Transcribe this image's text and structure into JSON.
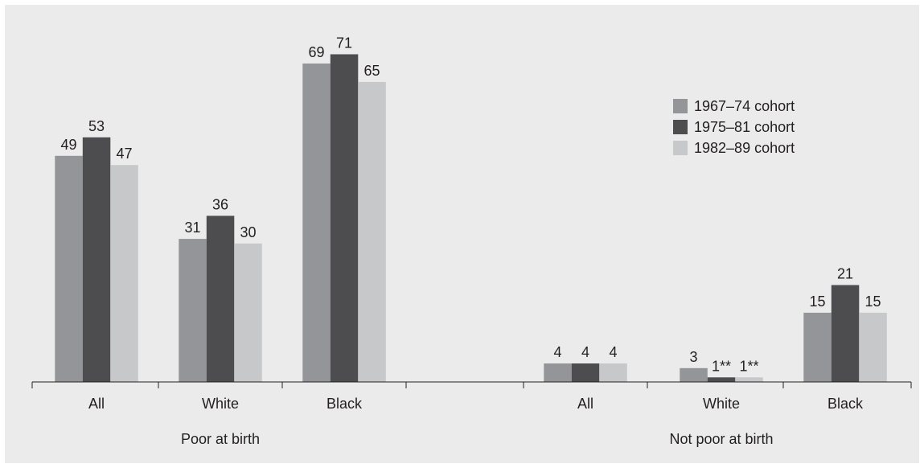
{
  "chart_data": {
    "type": "bar",
    "groups": [
      {
        "label": "Poor at birth",
        "categories": [
          "All",
          "White",
          "Black"
        ]
      },
      {
        "label": "Not poor at birth",
        "categories": [
          "All",
          "White",
          "Black"
        ]
      }
    ],
    "series": [
      {
        "name": "1967–74 cohort",
        "color": "#939598",
        "values": [
          49,
          31,
          69,
          4,
          3,
          15
        ],
        "labels": [
          "49",
          "31",
          "69",
          "4",
          "3",
          "15"
        ]
      },
      {
        "name": "1975–81 cohort",
        "color": "#4d4d4f",
        "values": [
          53,
          36,
          71,
          4,
          1,
          21
        ],
        "labels": [
          "53",
          "36",
          "71",
          "4",
          "1**",
          "21"
        ]
      },
      {
        "name": "1982–89 cohort",
        "color": "#c7c8ca",
        "values": [
          47,
          30,
          65,
          4,
          1,
          15
        ],
        "labels": [
          "47",
          "30",
          "65",
          "4",
          "1**",
          "15"
        ]
      }
    ],
    "ylim": [
      0,
      73
    ],
    "grid": false,
    "legend_position": "top-right",
    "background": "#ebebeb"
  }
}
